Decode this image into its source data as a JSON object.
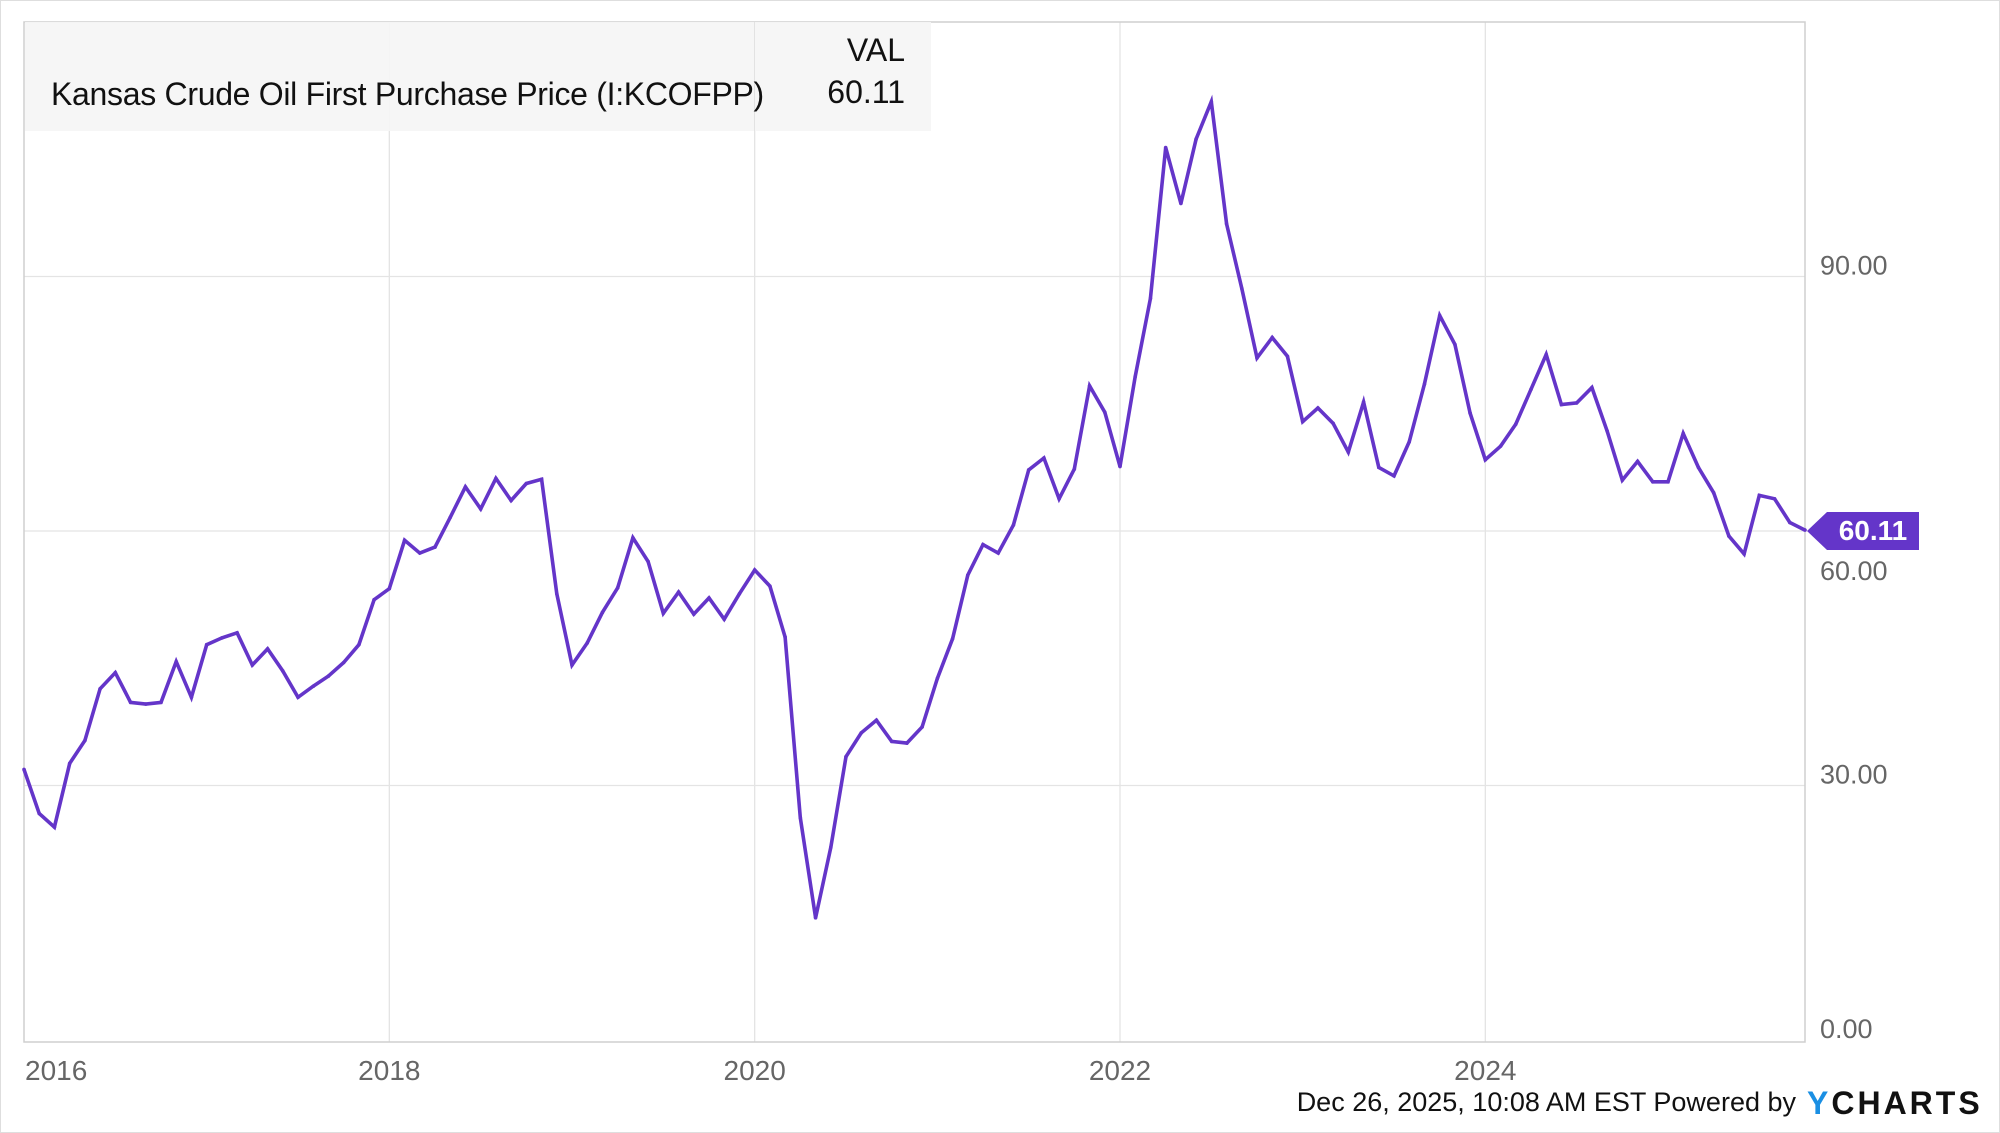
{
  "chart_data": {
    "type": "line",
    "title": "",
    "xlabel": "",
    "ylabel": "",
    "legend": {
      "header": "VAL",
      "series_label": "Kansas Crude Oil First Purchase Price (I:KCOFPP)",
      "value": "60.11",
      "placement": "top-left"
    },
    "xlim": [
      "2016-01",
      "2025-10"
    ],
    "ylim": [
      0,
      120
    ],
    "grid": true,
    "x_ticks": [
      "2016",
      "2018",
      "2020",
      "2022",
      "2024"
    ],
    "y_ticks": [
      "0.00",
      "30.00",
      "60.00",
      "90.00"
    ],
    "y_tick_values": [
      0,
      30,
      60,
      90
    ],
    "last_value_label": "60.11",
    "series": [
      {
        "name": "Kansas Crude Oil First Purchase Price (I:KCOFPP)",
        "color": "#6435c9",
        "start": "2016-01",
        "frequency": "monthly",
        "values": [
          31.9,
          26.7,
          25.1,
          32.6,
          35.3,
          41.4,
          43.3,
          39.8,
          39.6,
          39.8,
          44.6,
          40.4,
          46.6,
          47.4,
          48.0,
          44.2,
          46.1,
          43.5,
          40.4,
          41.7,
          42.9,
          44.5,
          46.6,
          51.9,
          53.2,
          58.9,
          57.4,
          58.1,
          61.6,
          65.2,
          62.6,
          66.2,
          63.6,
          65.6,
          66.1,
          52.6,
          44.2,
          46.8,
          50.4,
          53.3,
          59.2,
          56.4,
          50.3,
          52.8,
          50.2,
          52.1,
          49.6,
          52.6,
          55.4,
          53.5,
          47.5,
          26.2,
          14.4,
          22.7,
          33.4,
          36.2,
          37.7,
          35.2,
          35.0,
          36.9,
          42.6,
          47.3,
          54.8,
          58.4,
          57.4,
          60.7,
          67.2,
          68.6,
          63.8,
          67.3,
          77.1,
          74.0,
          67.6,
          78.2,
          87.4,
          105.2,
          98.6,
          106.2,
          110.6,
          96.2,
          88.6,
          80.4,
          82.8,
          80.6,
          72.9,
          74.5,
          72.7,
          69.3,
          75.2,
          67.5,
          66.5,
          70.5,
          77.3,
          85.4,
          82.0,
          73.9,
          68.4,
          70.0,
          72.6,
          76.7,
          80.8,
          74.9,
          75.1,
          76.9,
          71.8,
          66.0,
          68.2,
          65.8,
          65.8,
          71.5,
          67.5,
          64.5,
          59.4,
          57.3,
          64.2,
          63.8,
          61.0,
          60.11
        ]
      }
    ]
  },
  "footer": {
    "timestamp": "Dec 26, 2025, 10:08 AM EST Powered by",
    "logo_y": "Y",
    "logo_rest": "CHARTS"
  }
}
